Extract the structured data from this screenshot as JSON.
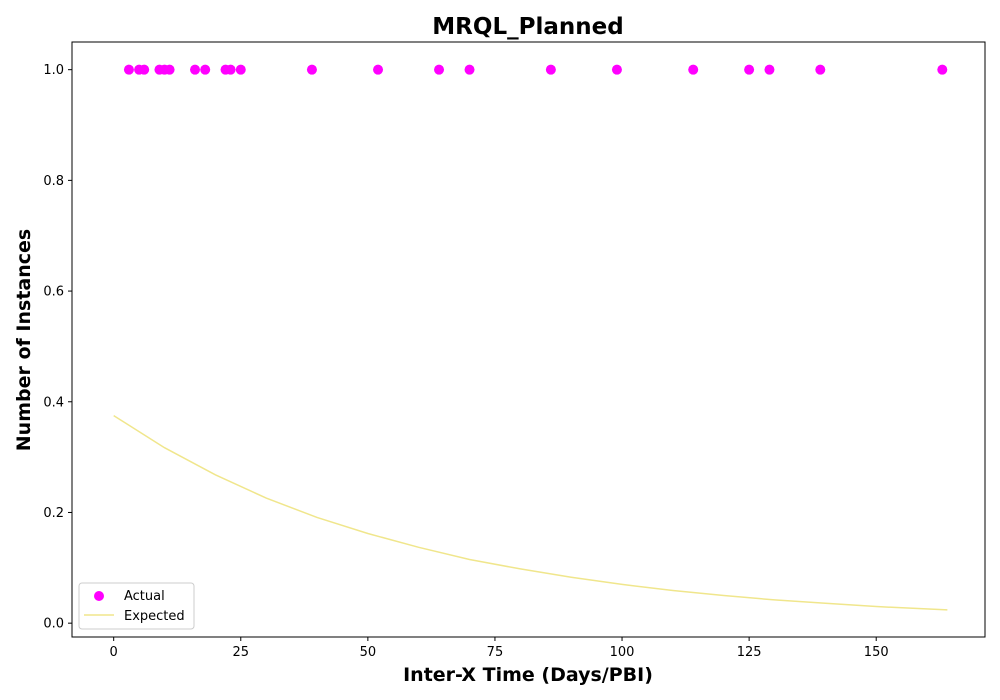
{
  "chart_data": {
    "type": "scatter",
    "title": "MRQL_Planned",
    "xlabel": "Inter-X Time (Days/PBI)",
    "ylabel": "Number of Instances",
    "xlim": [
      -8.2,
      171.4
    ],
    "ylim": [
      -0.025,
      1.05
    ],
    "xticks": [
      0,
      25,
      50,
      75,
      100,
      125,
      150
    ],
    "yticks": [
      0.0,
      0.2,
      0.4,
      0.6,
      0.8,
      1.0
    ],
    "xtick_labels": [
      "0",
      "25",
      "50",
      "75",
      "100",
      "125",
      "150"
    ],
    "ytick_labels": [
      "0.0",
      "0.2",
      "0.4",
      "0.6",
      "0.8",
      "1.0"
    ],
    "grid": false,
    "legend_position": "lower-left",
    "series": [
      {
        "name": "Actual",
        "kind": "scatter",
        "color": "#ff00ff",
        "x": [
          3,
          5,
          6,
          9,
          10,
          11,
          16,
          18,
          22,
          23,
          25,
          39,
          52,
          64,
          70,
          86,
          99,
          114,
          125,
          129,
          139,
          163
        ],
        "y": [
          1,
          1,
          1,
          1,
          1,
          1,
          1,
          1,
          1,
          1,
          1,
          1,
          1,
          1,
          1,
          1,
          1,
          1,
          1,
          1,
          1,
          1
        ]
      },
      {
        "name": "Expected",
        "kind": "line",
        "color": "#f0e68c",
        "x": [
          0,
          10,
          20,
          30,
          40,
          50,
          60,
          70,
          80,
          90,
          100,
          110,
          120,
          130,
          140,
          150,
          164
        ],
        "y": [
          0.375,
          0.317,
          0.268,
          0.226,
          0.191,
          0.162,
          0.137,
          0.115,
          0.098,
          0.083,
          0.07,
          0.059,
          0.05,
          0.042,
          0.036,
          0.03,
          0.024
        ]
      }
    ]
  }
}
